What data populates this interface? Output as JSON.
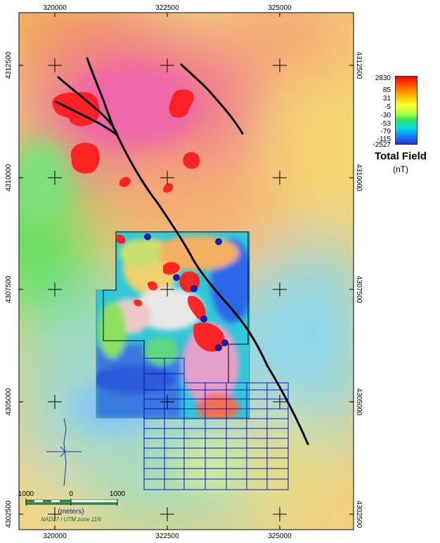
{
  "map": {
    "x_ticks_top": [
      "320000",
      "322500",
      "325000"
    ],
    "x_ticks_bottom": [
      "320000",
      "322500",
      "325000"
    ],
    "y_ticks_left": [
      "4312500",
      "4310000",
      "4307500",
      "4305000",
      "4302500"
    ],
    "y_ticks_right": [
      "4312500",
      "4310000",
      "4307500",
      "4305000",
      "4302500"
    ]
  },
  "legend": {
    "values": [
      "2830",
      "85",
      "31",
      "-5",
      "-30",
      "-53",
      "-79",
      "-115",
      "-2527"
    ],
    "title": "Total Field",
    "unit": "(nT)",
    "colors": [
      "#ff0000",
      "#ff5a00",
      "#ffb400",
      "#ffff30",
      "#a0ff40",
      "#30e060",
      "#00e0e0",
      "#1e7cff",
      "#1836d8"
    ]
  },
  "scale_bar": {
    "left_label": "1000",
    "mid_label": "0",
    "right_label": "1000",
    "units": "(meters)",
    "projection": "NAD27 / UTM zone 11N"
  }
}
